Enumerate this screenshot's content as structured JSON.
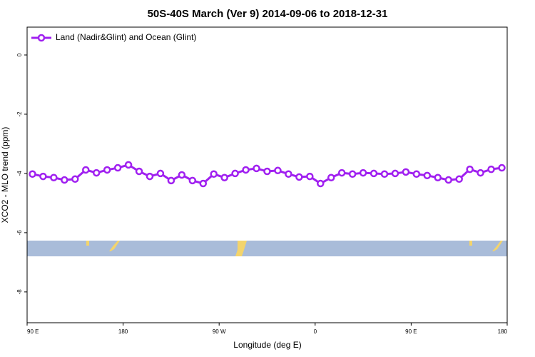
{
  "chart_data": {
    "type": "line",
    "title": "50S-40S March (Ver 9)   2014-09-06 to 2018-12-31",
    "x_label": "Longitude (deg E)",
    "y_label": "XCO2 - MLO trend (ppm)",
    "x": [
      95,
      105,
      115,
      125,
      135,
      145,
      155,
      165,
      175,
      185,
      195,
      205,
      215,
      225,
      235,
      245,
      255,
      265,
      275,
      285,
      295,
      305,
      315,
      325,
      335,
      345,
      355,
      365,
      375,
      385,
      395,
      405,
      415,
      425,
      435,
      445,
      455,
      465,
      475,
      485,
      495,
      505,
      515,
      525,
      535
    ],
    "series": [
      {
        "name": "Land (Nadir&Glint) and Ocean (Glint)",
        "color": "#a020f0",
        "values": [
          -4.02,
          -4.1,
          -4.14,
          -4.22,
          -4.19,
          -3.88,
          -3.98,
          -3.88,
          -3.81,
          -3.71,
          -3.93,
          -4.1,
          -4.0,
          -4.24,
          -4.05,
          -4.24,
          -4.34,
          -4.02,
          -4.14,
          -4.0,
          -3.88,
          -3.83,
          -3.93,
          -3.9,
          -4.02,
          -4.12,
          -4.1,
          -4.34,
          -4.14,
          -3.98,
          -4.02,
          -3.98,
          -4.0,
          -4.02,
          -4.0,
          -3.95,
          -4.02,
          -4.07,
          -4.14,
          -4.22,
          -4.19,
          -3.86,
          -3.98,
          -3.86,
          -3.81
        ]
      }
    ],
    "xlim": [
      90,
      540
    ],
    "xticks": [
      {
        "value": 90,
        "label": "90 E"
      },
      {
        "value": 180,
        "label": "180"
      },
      {
        "value": 270,
        "label": "90 W"
      },
      {
        "value": 360,
        "label": "0"
      },
      {
        "value": 450,
        "label": "90 E"
      },
      {
        "value": 540,
        "label": "180"
      }
    ],
    "ylim": [
      -9.04,
      0.94
    ],
    "yticks": [
      0,
      -2,
      -4,
      -6,
      -8
    ],
    "legend": "top-left"
  }
}
